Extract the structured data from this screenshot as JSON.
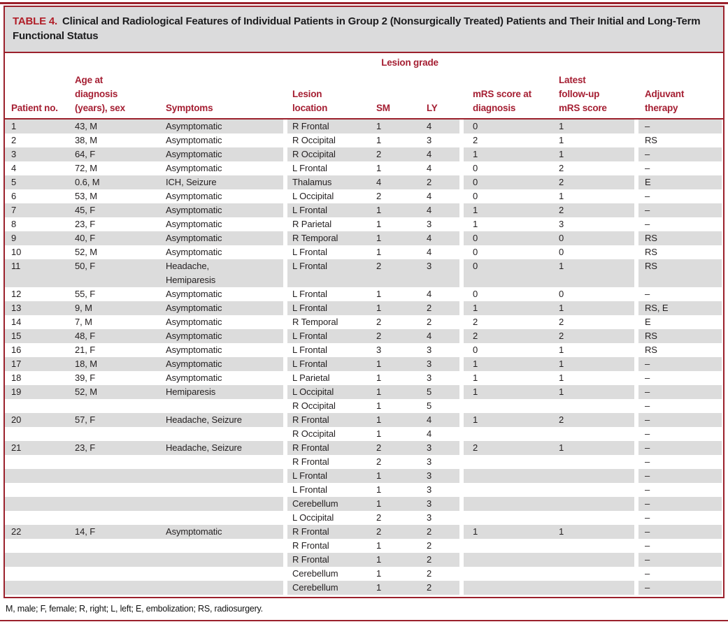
{
  "page": {
    "title_label": "TABLE 4.",
    "title_text": "Clinical and Radiological Features of Individual Patients in Group 2 (Nonsurgically Treated) Patients and Their Initial and Long-Term Functional Status",
    "footnote": "M, male; F, female; R, right; L, left; E, embolization; RS, radiosurgery."
  },
  "colors": {
    "accent_red": "#A51E32",
    "border_red": "#9B212C",
    "stripe_gray": "#DCDCDC",
    "text_black": "#231F20"
  },
  "header": {
    "patient_no": "Patient no.",
    "age_sex": "Age at\ndiagnosis\n(years), sex",
    "symptoms": "Symptoms",
    "lesion_location": "Lesion\nlocation",
    "lesion_grade_spanner": "Lesion grade",
    "sm": "SM",
    "ly": "LY",
    "mrs_diagnosis": "mRS score at\ndiagnosis",
    "latest_mrs": "Latest\nfollow-up\nmRS score",
    "adjuvant": "Adjuvant\ntherapy"
  },
  "rows": [
    {
      "no": "1",
      "age_sex": "43, M",
      "symptoms": "Asymptomatic",
      "location": "R Frontal",
      "sm": "1",
      "ly": "4",
      "mrs": "0",
      "latest": "1",
      "adjuvant": "–"
    },
    {
      "no": "2",
      "age_sex": "38, M",
      "symptoms": "Asymptomatic",
      "location": "R Occipital",
      "sm": "1",
      "ly": "3",
      "mrs": "2",
      "latest": "1",
      "adjuvant": "RS"
    },
    {
      "no": "3",
      "age_sex": "64, F",
      "symptoms": "Asymptomatic",
      "location": "R Occipital",
      "sm": "2",
      "ly": "4",
      "mrs": "1",
      "latest": "1",
      "adjuvant": "–"
    },
    {
      "no": "4",
      "age_sex": "72, M",
      "symptoms": "Asymptomatic",
      "location": "L Frontal",
      "sm": "1",
      "ly": "4",
      "mrs": "0",
      "latest": "2",
      "adjuvant": "–"
    },
    {
      "no": "5",
      "age_sex": "0.6, M",
      "symptoms": "ICH, Seizure",
      "location": "Thalamus",
      "sm": "4",
      "ly": "2",
      "mrs": "0",
      "latest": "2",
      "adjuvant": "E"
    },
    {
      "no": "6",
      "age_sex": "53, M",
      "symptoms": "Asymptomatic",
      "location": "L Occipital",
      "sm": "2",
      "ly": "4",
      "mrs": "0",
      "latest": "1",
      "adjuvant": "–"
    },
    {
      "no": "7",
      "age_sex": "45, F",
      "symptoms": "Asymptomatic",
      "location": "L Frontal",
      "sm": "1",
      "ly": "4",
      "mrs": "1",
      "latest": "2",
      "adjuvant": "–"
    },
    {
      "no": "8",
      "age_sex": "23, F",
      "symptoms": "Asymptomatic",
      "location": "R Parietal",
      "sm": "1",
      "ly": "3",
      "mrs": "1",
      "latest": "3",
      "adjuvant": "–"
    },
    {
      "no": "9",
      "age_sex": "40, F",
      "symptoms": "Asymptomatic",
      "location": "R Temporal",
      "sm": "1",
      "ly": "4",
      "mrs": "0",
      "latest": "0",
      "adjuvant": "RS"
    },
    {
      "no": "10",
      "age_sex": "52, M",
      "symptoms": "Asymptomatic",
      "location": "L Frontal",
      "sm": "1",
      "ly": "4",
      "mrs": "0",
      "latest": "0",
      "adjuvant": "RS"
    },
    {
      "no": "11",
      "age_sex": "50, F",
      "symptoms": "Headache,\nHemiparesis",
      "location": "L Frontal",
      "sm": "2",
      "ly": "3",
      "mrs": "0",
      "latest": "1",
      "adjuvant": "RS"
    },
    {
      "no": "12",
      "age_sex": "55, F",
      "symptoms": "Asymptomatic",
      "location": "L Frontal",
      "sm": "1",
      "ly": "4",
      "mrs": "0",
      "latest": "0",
      "adjuvant": "–"
    },
    {
      "no": "13",
      "age_sex": "9, M",
      "symptoms": "Asymptomatic",
      "location": "L Frontal",
      "sm": "1",
      "ly": "2",
      "mrs": "1",
      "latest": "1",
      "adjuvant": "RS, E"
    },
    {
      "no": "14",
      "age_sex": "7, M",
      "symptoms": "Asymptomatic",
      "location": "R Temporal",
      "sm": "2",
      "ly": "2",
      "mrs": "2",
      "latest": "2",
      "adjuvant": "E"
    },
    {
      "no": "15",
      "age_sex": "48, F",
      "symptoms": "Asymptomatic",
      "location": "L Frontal",
      "sm": "2",
      "ly": "4",
      "mrs": "2",
      "latest": "2",
      "adjuvant": "RS"
    },
    {
      "no": "16",
      "age_sex": "21, F",
      "symptoms": "Asymptomatic",
      "location": "L Frontal",
      "sm": "3",
      "ly": "3",
      "mrs": "0",
      "latest": "1",
      "adjuvant": "RS"
    },
    {
      "no": "17",
      "age_sex": "18, M",
      "symptoms": "Asymptomatic",
      "location": "L Frontal",
      "sm": "1",
      "ly": "3",
      "mrs": "1",
      "latest": "1",
      "adjuvant": "–"
    },
    {
      "no": "18",
      "age_sex": "39, F",
      "symptoms": "Asymptomatic",
      "location": "L Parietal",
      "sm": "1",
      "ly": "3",
      "mrs": "1",
      "latest": "1",
      "adjuvant": "–"
    },
    {
      "no": "19",
      "age_sex": "52, M",
      "symptoms": "Hemiparesis",
      "location": "L Occipital",
      "sm": "1",
      "ly": "5",
      "mrs": "1",
      "latest": "1",
      "adjuvant": "–"
    },
    {
      "no": "",
      "age_sex": "",
      "symptoms": "",
      "location": "R Occipital",
      "sm": "1",
      "ly": "5",
      "mrs": "",
      "latest": "",
      "adjuvant": "–"
    },
    {
      "no": "20",
      "age_sex": "57, F",
      "symptoms": "Headache, Seizure",
      "location": "R Frontal",
      "sm": "1",
      "ly": "4",
      "mrs": "1",
      "latest": "2",
      "adjuvant": "–"
    },
    {
      "no": "",
      "age_sex": "",
      "symptoms": "",
      "location": "R Occipital",
      "sm": "1",
      "ly": "4",
      "mrs": "",
      "latest": "",
      "adjuvant": "–"
    },
    {
      "no": "21",
      "age_sex": "23, F",
      "symptoms": "Headache, Seizure",
      "location": "R Frontal",
      "sm": "2",
      "ly": "3",
      "mrs": "2",
      "latest": "1",
      "adjuvant": "–"
    },
    {
      "no": "",
      "age_sex": "",
      "symptoms": "",
      "location": "R Frontal",
      "sm": "2",
      "ly": "3",
      "mrs": "",
      "latest": "",
      "adjuvant": "–"
    },
    {
      "no": "",
      "age_sex": "",
      "symptoms": "",
      "location": "L Frontal",
      "sm": "1",
      "ly": "3",
      "mrs": "",
      "latest": "",
      "adjuvant": "–"
    },
    {
      "no": "",
      "age_sex": "",
      "symptoms": "",
      "location": "L Frontal",
      "sm": "1",
      "ly": "3",
      "mrs": "",
      "latest": "",
      "adjuvant": "–"
    },
    {
      "no": "",
      "age_sex": "",
      "symptoms": "",
      "location": "Cerebellum",
      "sm": "1",
      "ly": "3",
      "mrs": "",
      "latest": "",
      "adjuvant": "–"
    },
    {
      "no": "",
      "age_sex": "",
      "symptoms": "",
      "location": "L Occipital",
      "sm": "2",
      "ly": "3",
      "mrs": "",
      "latest": "",
      "adjuvant": "–"
    },
    {
      "no": "22",
      "age_sex": "14, F",
      "symptoms": "Asymptomatic",
      "location": "R Frontal",
      "sm": "2",
      "ly": "2",
      "mrs": "1",
      "latest": "1",
      "adjuvant": "–"
    },
    {
      "no": "",
      "age_sex": "",
      "symptoms": "",
      "location": "R Frontal",
      "sm": "1",
      "ly": "2",
      "mrs": "",
      "latest": "",
      "adjuvant": "–"
    },
    {
      "no": "",
      "age_sex": "",
      "symptoms": "",
      "location": "R Frontal",
      "sm": "1",
      "ly": "2",
      "mrs": "",
      "latest": "",
      "adjuvant": "–"
    },
    {
      "no": "",
      "age_sex": "",
      "symptoms": "",
      "location": "Cerebellum",
      "sm": "1",
      "ly": "2",
      "mrs": "",
      "latest": "",
      "adjuvant": "–"
    },
    {
      "no": "",
      "age_sex": "",
      "symptoms": "",
      "location": "Cerebellum",
      "sm": "1",
      "ly": "2",
      "mrs": "",
      "latest": "",
      "adjuvant": "–"
    }
  ]
}
